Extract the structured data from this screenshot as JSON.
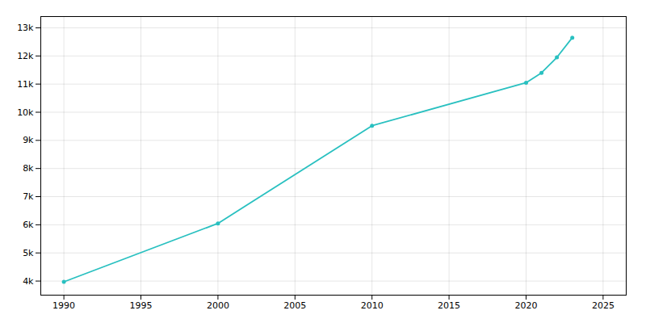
{
  "chart_data": {
    "type": "line",
    "x": [
      1990,
      2000,
      2010,
      2020,
      2021,
      2022,
      2023
    ],
    "values": [
      3974,
      6050,
      9520,
      11050,
      11400,
      11950,
      12650
    ],
    "color": "#29c0c0",
    "marker": "circle",
    "xlim": [
      1988.5,
      2026.5
    ],
    "ylim": [
      3500,
      13400
    ],
    "xticks": [
      1990,
      1995,
      2000,
      2005,
      2010,
      2015,
      2020,
      2025
    ],
    "yticks": [
      {
        "value": 4000,
        "label": "4k"
      },
      {
        "value": 5000,
        "label": "5k"
      },
      {
        "value": 6000,
        "label": "6k"
      },
      {
        "value": 7000,
        "label": "7k"
      },
      {
        "value": 8000,
        "label": "8k"
      },
      {
        "value": 9000,
        "label": "9k"
      },
      {
        "value": 10000,
        "label": "10k"
      },
      {
        "value": 11000,
        "label": "11k"
      },
      {
        "value": 12000,
        "label": "12k"
      },
      {
        "value": 13000,
        "label": "13k"
      }
    ],
    "grid": true
  }
}
